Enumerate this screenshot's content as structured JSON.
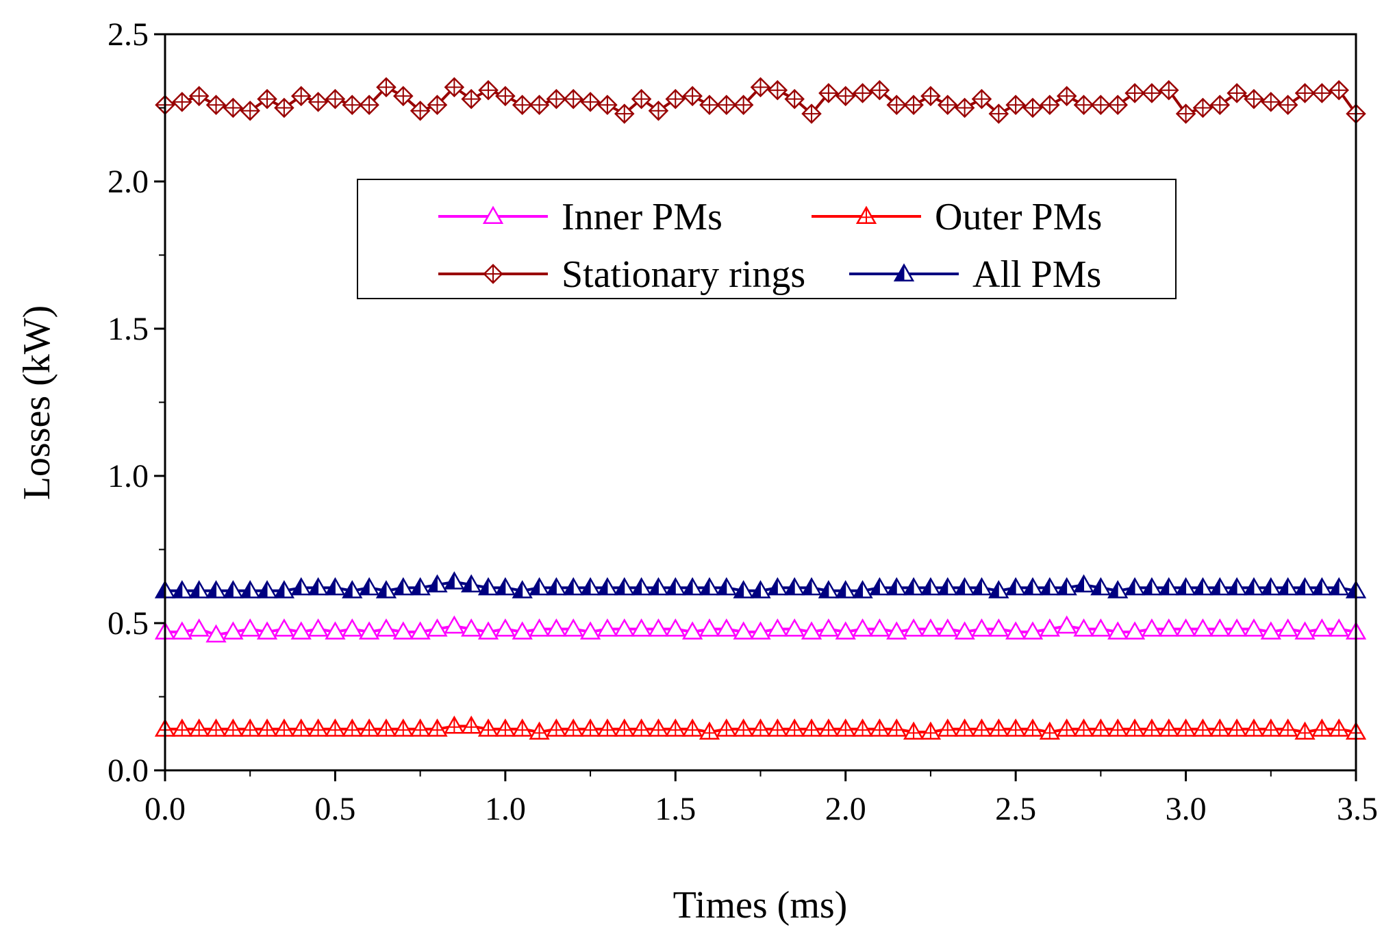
{
  "chart_data": {
    "type": "line",
    "title": "",
    "xlabel": "Times (ms)",
    "ylabel": "Losses (kW)",
    "xlim": [
      0.0,
      3.5
    ],
    "ylim": [
      0.0,
      2.5
    ],
    "xticks": [
      "0.0",
      "0.5",
      "1.0",
      "1.5",
      "2.0",
      "2.5",
      "3.0",
      "3.5"
    ],
    "yticks": [
      "0.0",
      "0.5",
      "1.0",
      "1.5",
      "2.0",
      "2.5"
    ],
    "grid": false,
    "legend": {
      "position": "upper-center",
      "columns": 2
    },
    "x": [
      0.0,
      0.05,
      0.1,
      0.15,
      0.2,
      0.25,
      0.3,
      0.35,
      0.4,
      0.45,
      0.5,
      0.55,
      0.6,
      0.65,
      0.7,
      0.75,
      0.8,
      0.85,
      0.9,
      0.95,
      1.0,
      1.05,
      1.1,
      1.15,
      1.2,
      1.25,
      1.3,
      1.35,
      1.4,
      1.45,
      1.5,
      1.55,
      1.6,
      1.65,
      1.7,
      1.75,
      1.8,
      1.85,
      1.9,
      1.95,
      2.0,
      2.05,
      2.1,
      2.15,
      2.2,
      2.25,
      2.3,
      2.35,
      2.4,
      2.45,
      2.5,
      2.55,
      2.6,
      2.65,
      2.7,
      2.75,
      2.8,
      2.85,
      2.9,
      2.95,
      3.0,
      3.05,
      3.1,
      3.15,
      3.2,
      3.25,
      3.3,
      3.35,
      3.4,
      3.45,
      3.5
    ],
    "series": [
      {
        "name": "Inner PMs",
        "color": "#ff00ff",
        "marker": "triangle-open",
        "values": [
          0.47,
          0.47,
          0.48,
          0.46,
          0.47,
          0.48,
          0.47,
          0.48,
          0.47,
          0.48,
          0.47,
          0.48,
          0.47,
          0.48,
          0.47,
          0.47,
          0.48,
          0.49,
          0.48,
          0.47,
          0.48,
          0.47,
          0.48,
          0.48,
          0.48,
          0.47,
          0.48,
          0.48,
          0.48,
          0.48,
          0.48,
          0.47,
          0.48,
          0.48,
          0.47,
          0.47,
          0.48,
          0.48,
          0.47,
          0.48,
          0.47,
          0.48,
          0.48,
          0.47,
          0.48,
          0.48,
          0.48,
          0.47,
          0.48,
          0.48,
          0.47,
          0.47,
          0.48,
          0.49,
          0.48,
          0.48,
          0.47,
          0.47,
          0.48,
          0.48,
          0.48,
          0.48,
          0.48,
          0.48,
          0.48,
          0.47,
          0.48,
          0.47,
          0.48,
          0.48,
          0.47
        ]
      },
      {
        "name": "Outer PMs",
        "color": "#ff0000",
        "marker": "triangle-cross",
        "values": [
          0.14,
          0.14,
          0.14,
          0.14,
          0.14,
          0.14,
          0.14,
          0.14,
          0.14,
          0.14,
          0.14,
          0.14,
          0.14,
          0.14,
          0.14,
          0.14,
          0.14,
          0.15,
          0.15,
          0.14,
          0.14,
          0.14,
          0.13,
          0.14,
          0.14,
          0.14,
          0.14,
          0.14,
          0.14,
          0.14,
          0.14,
          0.14,
          0.13,
          0.14,
          0.14,
          0.14,
          0.14,
          0.14,
          0.14,
          0.14,
          0.14,
          0.14,
          0.14,
          0.14,
          0.13,
          0.13,
          0.14,
          0.14,
          0.14,
          0.14,
          0.14,
          0.14,
          0.13,
          0.14,
          0.14,
          0.14,
          0.14,
          0.14,
          0.14,
          0.14,
          0.14,
          0.14,
          0.14,
          0.14,
          0.14,
          0.14,
          0.14,
          0.13,
          0.14,
          0.14,
          0.13
        ]
      },
      {
        "name": "Stationary rings",
        "color": "#990000",
        "marker": "diamond-cross",
        "values": [
          2.26,
          2.27,
          2.29,
          2.26,
          2.25,
          2.24,
          2.28,
          2.25,
          2.29,
          2.27,
          2.28,
          2.26,
          2.26,
          2.32,
          2.29,
          2.24,
          2.26,
          2.32,
          2.28,
          2.31,
          2.29,
          2.26,
          2.26,
          2.28,
          2.28,
          2.27,
          2.26,
          2.23,
          2.28,
          2.24,
          2.28,
          2.29,
          2.26,
          2.26,
          2.26,
          2.32,
          2.31,
          2.28,
          2.23,
          2.3,
          2.29,
          2.3,
          2.31,
          2.26,
          2.26,
          2.29,
          2.26,
          2.25,
          2.28,
          2.23,
          2.26,
          2.25,
          2.26,
          2.29,
          2.26,
          2.26,
          2.26,
          2.3,
          2.3,
          2.31,
          2.23,
          2.25,
          2.26,
          2.3,
          2.28,
          2.27,
          2.26,
          2.3,
          2.3,
          2.31,
          2.23
        ]
      },
      {
        "name": "All PMs",
        "color": "#000080",
        "marker": "triangle-half",
        "values": [
          0.61,
          0.61,
          0.61,
          0.61,
          0.61,
          0.61,
          0.61,
          0.61,
          0.62,
          0.62,
          0.62,
          0.61,
          0.62,
          0.61,
          0.62,
          0.62,
          0.63,
          0.64,
          0.63,
          0.62,
          0.62,
          0.61,
          0.62,
          0.62,
          0.62,
          0.62,
          0.62,
          0.62,
          0.62,
          0.62,
          0.62,
          0.62,
          0.62,
          0.62,
          0.61,
          0.61,
          0.62,
          0.62,
          0.62,
          0.61,
          0.61,
          0.61,
          0.62,
          0.62,
          0.62,
          0.62,
          0.62,
          0.62,
          0.62,
          0.61,
          0.62,
          0.62,
          0.62,
          0.62,
          0.63,
          0.62,
          0.61,
          0.62,
          0.62,
          0.62,
          0.62,
          0.62,
          0.62,
          0.62,
          0.62,
          0.62,
          0.62,
          0.62,
          0.62,
          0.62,
          0.61
        ]
      }
    ]
  }
}
